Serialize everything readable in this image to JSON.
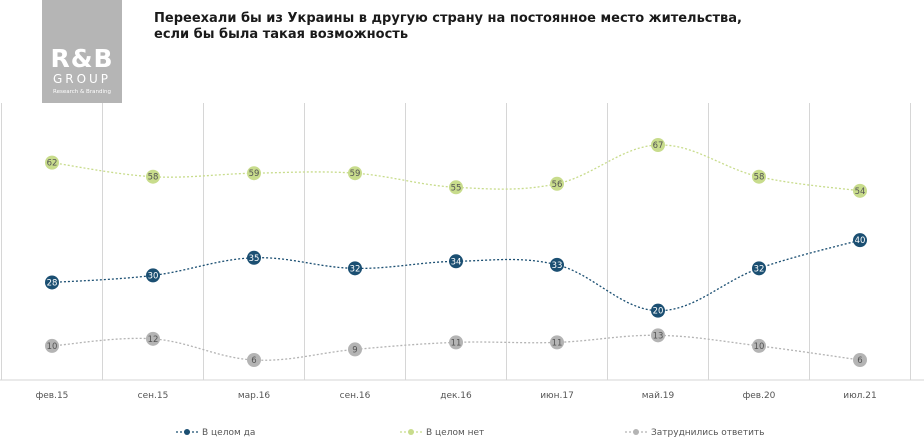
{
  "title_lines": [
    "Переехали бы из Украины в другую страну на постоянное место жительства,",
    "если бы была такая возможность"
  ],
  "logo": {
    "brand": "R&B",
    "group": "GROUP",
    "tagline": "Research & Branding"
  },
  "colors": {
    "yes": "#1b4f72",
    "no": "#c8dc8c",
    "unsure": "#b4b4b4",
    "grid": "#d6d6d6",
    "logo_bg": "#b5b5b5"
  },
  "chart_data": {
    "type": "line",
    "categories": [
      "фев.15",
      "сен.15",
      "мар.16",
      "сен.16",
      "дек.16",
      "июн.17",
      "май.19",
      "фев.20",
      "июл.21"
    ],
    "series": [
      {
        "name": "В целом да",
        "values": [
          28,
          30,
          35,
          32,
          34,
          33,
          20,
          32,
          40
        ],
        "color": "#1b4f72"
      },
      {
        "name": "В целом нет",
        "values": [
          62,
          58,
          59,
          59,
          55,
          56,
          67,
          58,
          54
        ],
        "color": "#c8dc8c"
      },
      {
        "name": "Затруднились  ответить",
        "values": [
          10,
          12,
          6,
          9,
          11,
          11,
          13,
          10,
          6
        ],
        "color": "#b4b4b4"
      }
    ],
    "legend_position": "bottom",
    "grid": "vertical",
    "data_labels": true
  }
}
